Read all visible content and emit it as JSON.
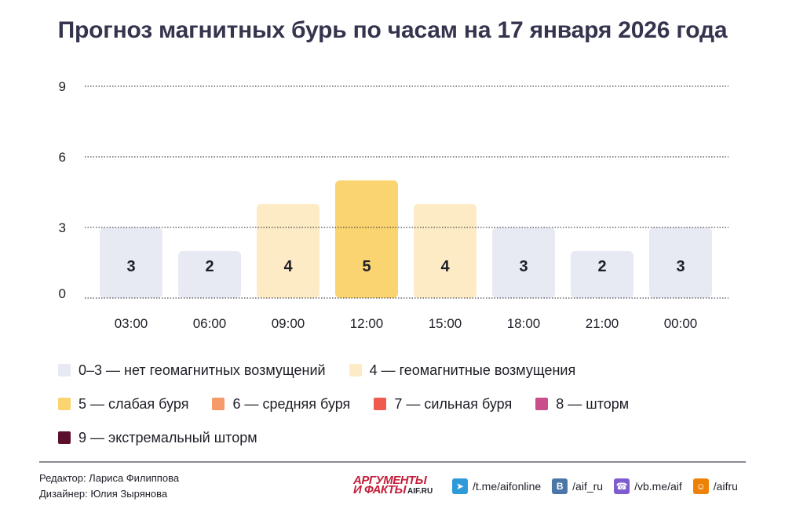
{
  "title": "Прогноз магнитных бурь по часам на 17 января 2026 года",
  "chart_data": {
    "type": "bar",
    "categories": [
      "03:00",
      "06:00",
      "09:00",
      "12:00",
      "15:00",
      "18:00",
      "21:00",
      "00:00"
    ],
    "values": [
      3,
      2,
      4,
      5,
      4,
      3,
      2,
      3
    ],
    "ylim": [
      0,
      9
    ],
    "yticks": [
      0,
      3,
      6,
      9
    ],
    "grid": true,
    "title": "Прогноз магнитных бурь по часам на 17 января 2026 года",
    "xlabel": "",
    "ylabel": ""
  },
  "level_colors": {
    "0-3": "#e8eaf3",
    "4": "#fcebc5",
    "5": "#fad471",
    "6": "#f79a6a",
    "7": "#ee5a4e",
    "8": "#c94f8a",
    "9": "#5c0f2c"
  },
  "legend": {
    "rows": [
      [
        {
          "label": "0–3 — нет геомагнитных возмущений",
          "color": "#e8eaf3"
        },
        {
          "label": "4 — геомагнитные возмущения",
          "color": "#fcebc5"
        }
      ],
      [
        {
          "label": "5 — слабая буря",
          "color": "#fad471"
        },
        {
          "label": "6 — средняя буря",
          "color": "#f79a6a"
        },
        {
          "label": "7 — сильная буря",
          "color": "#ee5a4e"
        },
        {
          "label": "8 — шторм",
          "color": "#c94f8a"
        }
      ],
      [
        {
          "label": "9 — экстремальный шторм",
          "color": "#5c0f2c"
        }
      ]
    ]
  },
  "credits": {
    "editor": "Редактор: Лариса Филиппова",
    "designer": "Дизайнер: Юлия Зырянова"
  },
  "logo": {
    "line1": "АРГУМЕНТЫ",
    "line2": "И ФАКТЫ",
    "site": "AIF.RU"
  },
  "social": [
    {
      "icon": "telegram-icon",
      "color": "#2f9ad8",
      "label": "/t.me/aifonline"
    },
    {
      "icon": "vk-icon",
      "color": "#4a76a8",
      "label": "/aif_ru"
    },
    {
      "icon": "viber-icon",
      "color": "#7d5ccf",
      "label": "/vb.me/aif"
    },
    {
      "icon": "odnoklassniki-icon",
      "color": "#ee8208",
      "label": "/aifru"
    }
  ]
}
